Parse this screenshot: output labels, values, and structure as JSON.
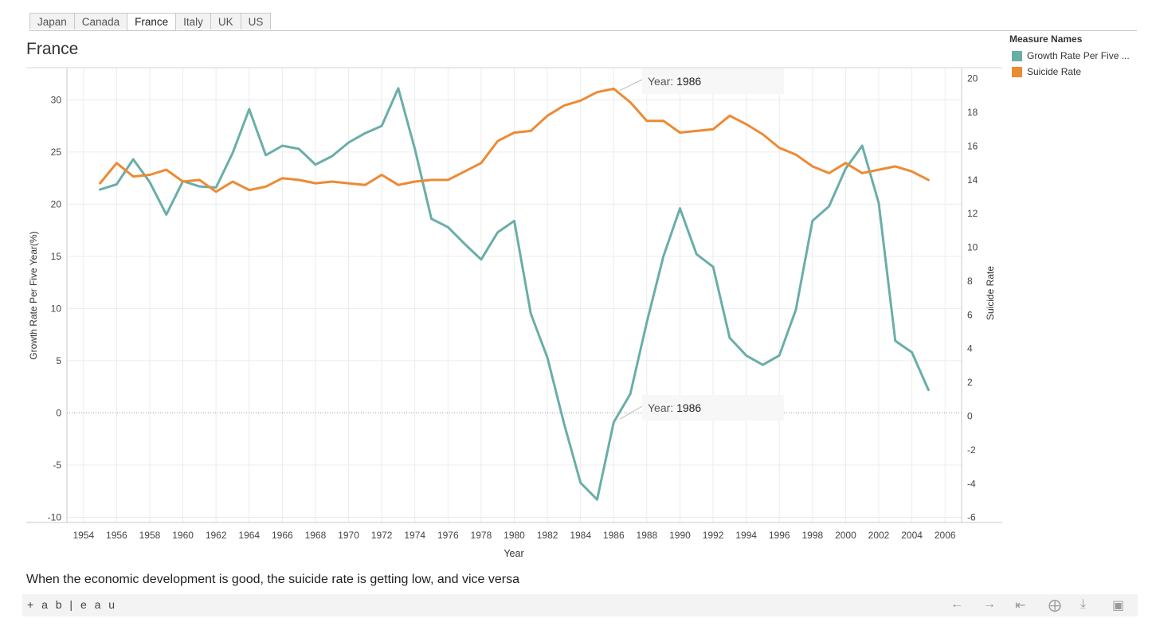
{
  "tabs": [
    "Japan",
    "Canada",
    "France",
    "Italy",
    "UK",
    "US"
  ],
  "active_tab": "France",
  "title": "France",
  "legend": {
    "title": "Measure Names",
    "items": [
      {
        "label": "Growth Rate Per Five ...",
        "color": "#6aaea8"
      },
      {
        "label": "Suicide Rate",
        "color": "#ed8a34"
      }
    ]
  },
  "tooltips": [
    {
      "prefix": "Year:",
      "value": "1986"
    },
    {
      "prefix": "Year:",
      "value": "1986"
    }
  ],
  "caption": "When the economic development is good, the suicide rate is getting low, and vice versa",
  "footer": {
    "logo": "+ a b | e a u",
    "icons": [
      "undo-icon",
      "redo-icon",
      "revert-icon",
      "share-icon",
      "download-icon",
      "fullscreen-icon"
    ]
  },
  "chart_data": {
    "type": "line",
    "title": "France",
    "xlabel": "Year",
    "ylabel_left": "Growth Rate Per Five Year(%)",
    "ylabel_right": "Suicide Rate",
    "xlim": [
      1953,
      2007
    ],
    "ylim_left": [
      -10.5,
      33
    ],
    "ylim_right": [
      -6.3,
      20.6
    ],
    "x_ticks": [
      1954,
      1956,
      1958,
      1960,
      1962,
      1964,
      1966,
      1968,
      1970,
      1972,
      1974,
      1976,
      1978,
      1980,
      1982,
      1984,
      1986,
      1988,
      1990,
      1992,
      1994,
      1996,
      1998,
      2000,
      2002,
      2004,
      2006
    ],
    "y_ticks_left": [
      -10,
      -5,
      0,
      5,
      10,
      15,
      20,
      25,
      30
    ],
    "y_ticks_right": [
      -6,
      -4,
      -2,
      0,
      2,
      4,
      6,
      8,
      10,
      12,
      14,
      16,
      18,
      20
    ],
    "grid": true,
    "x": [
      1955,
      1956,
      1957,
      1958,
      1959,
      1960,
      1961,
      1962,
      1963,
      1964,
      1965,
      1966,
      1967,
      1968,
      1969,
      1970,
      1971,
      1972,
      1973,
      1974,
      1975,
      1976,
      1977,
      1978,
      1979,
      1980,
      1981,
      1982,
      1983,
      1984,
      1985,
      1986,
      1987,
      1988,
      1989,
      1990,
      1991,
      1992,
      1993,
      1994,
      1995,
      1996,
      1997,
      1998,
      1999,
      2000,
      2001,
      2002,
      2003,
      2004,
      2005
    ],
    "series": [
      {
        "name": "Growth Rate Per Five ...",
        "axis": "left",
        "color": "#6aaea8",
        "values": [
          21.4,
          21.9,
          24.3,
          22.1,
          19.0,
          22.2,
          21.7,
          21.6,
          24.9,
          29.1,
          24.7,
          25.6,
          25.3,
          23.8,
          24.6,
          25.9,
          26.8,
          27.5,
          31.1,
          25.3,
          18.6,
          17.8,
          16.2,
          14.7,
          17.3,
          18.4,
          9.5,
          5.3,
          -1.0,
          -6.7,
          -8.3,
          -0.9,
          1.8,
          8.7,
          15.0,
          19.6,
          15.2,
          14.0,
          7.2,
          5.5,
          4.6,
          5.5,
          9.9,
          18.4,
          19.8,
          23.4,
          25.6,
          20.1,
          6.9,
          5.8,
          2.2
        ]
      },
      {
        "name": "Suicide Rate",
        "axis": "right",
        "color": "#ed8a34",
        "values": [
          13.8,
          15.0,
          14.2,
          14.3,
          14.6,
          13.9,
          14.0,
          13.3,
          13.9,
          13.4,
          13.6,
          14.1,
          14.0,
          13.8,
          13.9,
          13.8,
          13.7,
          14.3,
          13.7,
          13.9,
          14.0,
          14.0,
          14.5,
          15.0,
          16.3,
          16.8,
          16.9,
          17.8,
          18.4,
          18.7,
          19.2,
          19.4,
          18.6,
          17.5,
          17.5,
          16.8,
          16.9,
          17.0,
          17.8,
          17.3,
          16.7,
          15.9,
          15.5,
          14.8,
          14.4,
          15.0,
          14.4,
          14.6,
          14.8,
          14.5,
          14.0
        ]
      }
    ]
  }
}
